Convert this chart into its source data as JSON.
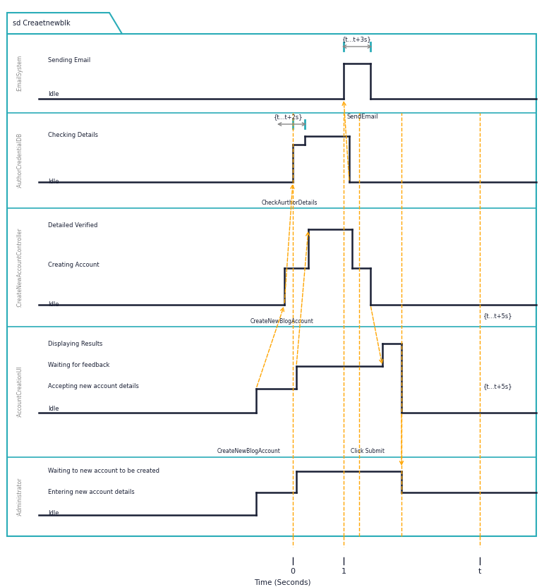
{
  "title": "sd Creaetnewblk",
  "xlabel": "Time (Seconds)",
  "border_color": "#2AACB8",
  "dark_navy": "#1a2035",
  "orange": "#FFA500",
  "gray": "#888888",
  "teal": "#2AACB8",
  "bg_color": "#FFFFFF",
  "lane_labels": [
    ":EmailSystem",
    ":AuthorCredentialDB",
    ":CreateNewAccountController",
    ":AccountCreationUI",
    ":Administrator"
  ],
  "state_rows": [
    [
      "Sending Email",
      "Idle"
    ],
    [
      "Checking Details",
      "Idle"
    ],
    [
      "Detailed Verified",
      "Creating Account",
      "Idle"
    ],
    [
      "Displaying Results",
      "Waiting for feedback",
      "Accepting new account details",
      "Idle"
    ],
    [
      "Waiting to new account to be created",
      "Entering new account details",
      "Idle"
    ]
  ],
  "annotation_labels": [
    "{t...t+3s}",
    "{t...t+2s}",
    "SendEmail",
    "CheckAurthorDetails",
    "CreateNewBlogAccount",
    "{t...t+5s}",
    "Click Submit",
    "CreateNewBlogAccount",
    "{t...t+5s}"
  ],
  "x_tick_labels": [
    "0",
    "1",
    "t"
  ]
}
